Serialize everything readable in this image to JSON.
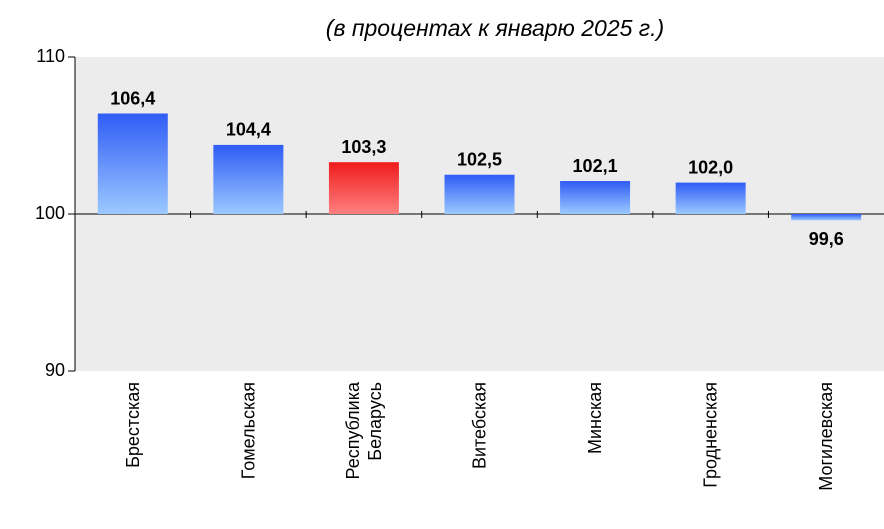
{
  "chart_data": {
    "type": "bar",
    "title": "(в процентах к январю 2025 г.)",
    "categories": [
      "Брестская",
      "Гомельская",
      "Республика Беларусь",
      "Витебская",
      "Минская",
      "Гродненская",
      "Могилевская"
    ],
    "values": [
      106.4,
      104.4,
      103.3,
      102.5,
      102.1,
      102.0,
      99.6
    ],
    "value_labels": [
      "106,4",
      "104,4",
      "103,3",
      "102,5",
      "102,1",
      "102,0",
      "99,6"
    ],
    "colors": [
      "blue",
      "blue",
      "red",
      "blue",
      "blue",
      "blue",
      "blue"
    ],
    "base": 100,
    "ylim": [
      90,
      110
    ],
    "yticks": [
      90,
      100,
      110
    ]
  }
}
